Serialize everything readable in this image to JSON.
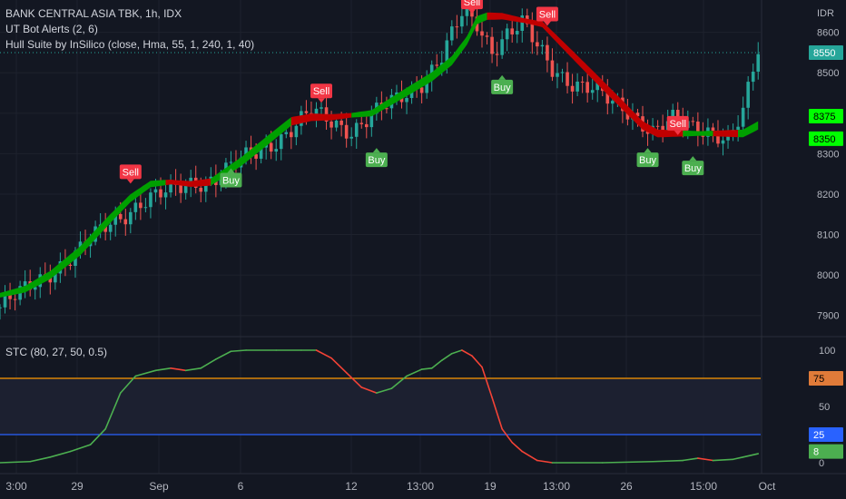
{
  "legend": {
    "title": "BANK CENTRAL ASIA TBK, 1h, IDX",
    "ut_bot": "UT Bot Alerts (2, 6)",
    "hull": "Hull Suite by InSilico (close, Hma, 55, 1, 240, 1, 40)",
    "stc": "STC (80, 27, 50, 0.5)"
  },
  "colors": {
    "background": "#131722",
    "up": "#26a69a",
    "down": "#ef5350",
    "hull_up": "#00a000",
    "hull_down": "#c00000",
    "buy_label": "#4caf50",
    "sell_label": "#f23645",
    "stc_up": "#4caf50",
    "stc_down": "#f44336",
    "level_75": "#ff9800",
    "level_25": "#2962ff",
    "last_price": "#26a69a",
    "hull_badge": "#00ff00"
  },
  "chart_data": [
    {
      "type": "candlestick",
      "title": "BANK CENTRAL ASIA TBK, 1h, IDX",
      "currency": "IDR",
      "ylim": [
        7850,
        8680
      ],
      "y_ticks": [
        7900,
        8000,
        8100,
        8200,
        8300,
        8400,
        8500,
        8600
      ],
      "x_tick_labels": [
        "3:00",
        "29",
        "Sep",
        "6",
        "12",
        "13:00",
        "19",
        "13:00",
        "26",
        "15:00",
        "Oct"
      ],
      "last_price": 8550,
      "price_badges": [
        "8550",
        "8375",
        "8350"
      ],
      "close_path": [
        [
          0,
          7920
        ],
        [
          5,
          7960
        ],
        [
          10,
          8010
        ],
        [
          16,
          8060
        ],
        [
          22,
          8130
        ],
        [
          28,
          8180
        ],
        [
          33,
          8200
        ],
        [
          38,
          8230
        ],
        [
          43,
          8240
        ],
        [
          48,
          8280
        ],
        [
          53,
          8320
        ],
        [
          58,
          8360
        ],
        [
          62,
          8400
        ],
        [
          66,
          8380
        ],
        [
          70,
          8360
        ],
        [
          75,
          8400
        ],
        [
          80,
          8440
        ],
        [
          84,
          8480
        ],
        [
          88,
          8540
        ],
        [
          92,
          8640
        ],
        [
          95,
          8620
        ],
        [
          98,
          8560
        ],
        [
          101,
          8600
        ],
        [
          104,
          8620
        ],
        [
          107,
          8560
        ],
        [
          110,
          8510
        ],
        [
          114,
          8480
        ],
        [
          118,
          8460
        ],
        [
          122,
          8420
        ],
        [
          126,
          8400
        ],
        [
          130,
          8360
        ],
        [
          134,
          8380
        ],
        [
          138,
          8360
        ],
        [
          142,
          8360
        ],
        [
          145,
          8340
        ],
        [
          148,
          8400
        ],
        [
          151,
          8550
        ]
      ],
      "hull_suite": [
        [
          0,
          7950
        ],
        [
          5,
          7965
        ],
        [
          10,
          8000
        ],
        [
          16,
          8060
        ],
        [
          22,
          8140
        ],
        [
          26,
          8190
        ],
        [
          30,
          8225
        ],
        [
          34,
          8230
        ],
        [
          38,
          8225
        ],
        [
          42,
          8230
        ],
        [
          48,
          8280
        ],
        [
          54,
          8340
        ],
        [
          58,
          8380
        ],
        [
          62,
          8390
        ],
        [
          66,
          8390
        ],
        [
          70,
          8395
        ],
        [
          74,
          8400
        ],
        [
          78,
          8430
        ],
        [
          82,
          8460
        ],
        [
          86,
          8490
        ],
        [
          90,
          8530
        ],
        [
          93,
          8580
        ],
        [
          95,
          8630
        ],
        [
          97,
          8640
        ],
        [
          100,
          8640
        ],
        [
          104,
          8630
        ],
        [
          108,
          8620
        ],
        [
          112,
          8570
        ],
        [
          116,
          8520
        ],
        [
          120,
          8470
        ],
        [
          124,
          8420
        ],
        [
          128,
          8370
        ],
        [
          131,
          8350
        ],
        [
          136,
          8350
        ],
        [
          142,
          8350
        ],
        [
          148,
          8350
        ],
        [
          151,
          8370
        ]
      ],
      "hull_color_segments": [
        {
          "from": 0,
          "to": 33,
          "trend": "up"
        },
        {
          "from": 33,
          "to": 42,
          "trend": "down"
        },
        {
          "from": 42,
          "to": 58,
          "trend": "up"
        },
        {
          "from": 58,
          "to": 70,
          "trend": "down"
        },
        {
          "from": 70,
          "to": 97,
          "trend": "up"
        },
        {
          "from": 97,
          "to": 136,
          "trend": "down"
        },
        {
          "from": 136,
          "to": 142,
          "trend": "up"
        },
        {
          "from": 142,
          "to": 147,
          "trend": "down"
        },
        {
          "from": 147,
          "to": 151,
          "trend": "up"
        }
      ],
      "signals": [
        {
          "label": "Sell",
          "side": "sell",
          "bar": 26,
          "price": 8235
        },
        {
          "label": "Buy",
          "side": "buy",
          "bar": 46,
          "price": 8255
        },
        {
          "label": "Sell",
          "side": "sell",
          "bar": 64,
          "price": 8435
        },
        {
          "label": "Buy",
          "side": "buy",
          "bar": 75,
          "price": 8305
        },
        {
          "label": "Sell",
          "side": "sell",
          "bar": 94,
          "price": 8655
        },
        {
          "label": "Buy",
          "side": "buy",
          "bar": 100,
          "price": 8485
        },
        {
          "label": "Sell",
          "side": "sell",
          "bar": 109,
          "price": 8625
        },
        {
          "label": "Buy",
          "side": "buy",
          "bar": 129,
          "price": 8305
        },
        {
          "label": "Sell",
          "side": "sell",
          "bar": 135,
          "price": 8355
        },
        {
          "label": "Buy",
          "side": "buy",
          "bar": 138,
          "price": 8285
        }
      ]
    },
    {
      "type": "line",
      "title": "STC (80, 27, 50, 0.5)",
      "ylim": [
        0,
        100
      ],
      "y_ticks": [
        0,
        50,
        100
      ],
      "levels": [
        75,
        25
      ],
      "last_value": 8,
      "value_badges": [
        "75",
        "25",
        "8"
      ],
      "series": [
        [
          0,
          0
        ],
        [
          6,
          1
        ],
        [
          10,
          5
        ],
        [
          14,
          10
        ],
        [
          18,
          16
        ],
        [
          21,
          30
        ],
        [
          24,
          62
        ],
        [
          27,
          77
        ],
        [
          31,
          82
        ],
        [
          34,
          84
        ],
        [
          37,
          82
        ],
        [
          40,
          84
        ],
        [
          43,
          92
        ],
        [
          46,
          99
        ],
        [
          49,
          100
        ],
        [
          55,
          100
        ],
        [
          60,
          100
        ],
        [
          63,
          100
        ],
        [
          66,
          93
        ],
        [
          69,
          80
        ],
        [
          72,
          67
        ],
        [
          75,
          62
        ],
        [
          78,
          66
        ],
        [
          81,
          77
        ],
        [
          84,
          83
        ],
        [
          86,
          84
        ],
        [
          88,
          91
        ],
        [
          90,
          97
        ],
        [
          92,
          100
        ],
        [
          94,
          95
        ],
        [
          96,
          85
        ],
        [
          98,
          58
        ],
        [
          100,
          30
        ],
        [
          102,
          18
        ],
        [
          104,
          10
        ],
        [
          107,
          2
        ],
        [
          110,
          0
        ],
        [
          120,
          0
        ],
        [
          130,
          1
        ],
        [
          136,
          2
        ],
        [
          139,
          4
        ],
        [
          142,
          2
        ],
        [
          146,
          3
        ],
        [
          148,
          5
        ],
        [
          151,
          8
        ]
      ]
    }
  ]
}
